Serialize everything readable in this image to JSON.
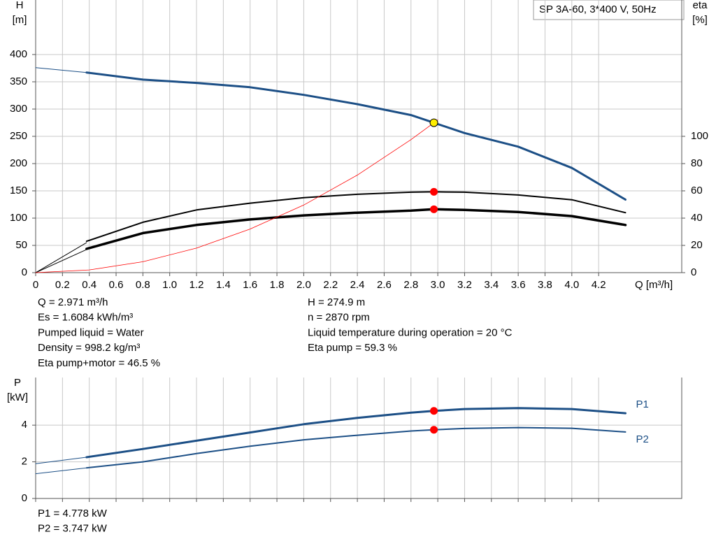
{
  "chart_data": [
    {
      "type": "line",
      "title": "SP 3A-60, 3*400 V, 50Hz",
      "ylabel": "H",
      "yunit": "[m]",
      "y2label": "eta",
      "y2unit": "[%]",
      "xlabel": "Q [m³/h]",
      "xlim": [
        0,
        4.82
      ],
      "xticks": [
        0,
        0.2,
        0.4,
        0.6,
        0.8,
        {
          "value": 1,
          "label": "1.0"
        },
        1.2,
        1.4,
        1.6,
        1.8,
        {
          "value": 2,
          "label": "2.0"
        },
        2.2,
        2.4,
        2.6,
        2.8,
        {
          "value": 3,
          "label": "3.0"
        },
        3.2,
        3.4,
        3.6,
        3.8,
        {
          "value": 4,
          "label": "4.0"
        },
        4.2
      ],
      "ylim": [
        0,
        500
      ],
      "yticks": [
        0,
        50,
        100,
        150,
        200,
        250,
        300,
        350,
        400
      ],
      "y2lim": [
        0,
        200
      ],
      "y2ticks": [
        0,
        20,
        40,
        60,
        80,
        100
      ],
      "grid": true,
      "series": [
        {
          "color": "#1c4f86",
          "width": 1,
          "x": [
            0,
            0.38
          ],
          "values": [
            376,
            367
          ]
        },
        {
          "color": "#1c4f86",
          "width": 3,
          "x": [
            0.38,
            0.8,
            1.2,
            1.6,
            2.0,
            2.4,
            2.8,
            2.971,
            3.2,
            3.6,
            4.0,
            4.4
          ],
          "values": [
            367,
            354,
            348,
            340,
            326,
            309,
            289,
            274.9,
            256,
            231,
            192,
            134
          ]
        },
        {
          "color": "#000000",
          "width": 1,
          "axis": "y2",
          "x": [
            0,
            0.38
          ],
          "values": [
            0,
            22
          ]
        },
        {
          "color": "#000000",
          "width": 2,
          "axis": "y2",
          "x": [
            0.38,
            0.8,
            1.2,
            1.6,
            2.0,
            2.4,
            2.8,
            2.971,
            3.2,
            3.6,
            4.0,
            4.4
          ],
          "values": [
            23,
            37,
            46,
            51,
            55,
            57.5,
            59,
            59.3,
            59,
            57,
            53.5,
            44
          ]
        },
        {
          "color": "#000000",
          "width": 1,
          "axis": "y2",
          "x": [
            0,
            0.38
          ],
          "values": [
            0,
            17
          ]
        },
        {
          "color": "#000000",
          "width": 3.5,
          "axis": "y2",
          "x": [
            0.38,
            0.8,
            1.2,
            1.6,
            2.0,
            2.4,
            2.8,
            2.971,
            3.2,
            3.6,
            4.0,
            4.4
          ],
          "values": [
            17.5,
            29,
            35,
            39,
            42,
            44,
            45.5,
            46.5,
            46,
            44.5,
            41.5,
            35
          ]
        },
        {
          "color": "#ff0000",
          "width": 0.8,
          "x": [
            0,
            0.4,
            0.8,
            1.2,
            1.6,
            2.0,
            2.4,
            2.8,
            3.0
          ],
          "values": [
            0,
            5,
            20,
            45,
            80,
            124,
            179,
            244,
            280
          ]
        }
      ],
      "points": [
        {
          "x": 2.971,
          "value": 274.9,
          "color": "#ffee00"
        },
        {
          "x": 2.971,
          "value": 59.3,
          "color": "#ff0000",
          "axis": "y2"
        },
        {
          "x": 2.971,
          "value": 46.5,
          "color": "#ff0000",
          "axis": "y2"
        }
      ]
    },
    {
      "type": "line",
      "ylabel": "P",
      "yunit": "[kW]",
      "xlim": [
        0,
        4.82
      ],
      "ylim": [
        0,
        6.6
      ],
      "yticks": [
        0,
        2,
        4
      ],
      "grid": true,
      "series": [
        {
          "color": "#1c4f86",
          "width": 1,
          "x": [
            0,
            0.38
          ],
          "values": [
            1.9,
            2.25
          ]
        },
        {
          "name": "P1",
          "color": "#1c4f86",
          "width": 3,
          "x": [
            0.38,
            0.8,
            1.2,
            1.6,
            2.0,
            2.4,
            2.8,
            2.971,
            3.2,
            3.6,
            4.0,
            4.4
          ],
          "values": [
            2.25,
            2.7,
            3.15,
            3.6,
            4.05,
            4.4,
            4.68,
            4.778,
            4.88,
            4.93,
            4.88,
            4.65
          ]
        },
        {
          "color": "#1c4f86",
          "width": 1,
          "x": [
            0,
            0.38
          ],
          "values": [
            1.35,
            1.67
          ]
        },
        {
          "name": "P2",
          "color": "#1c4f86",
          "width": 2,
          "x": [
            0.38,
            0.8,
            1.2,
            1.6,
            2.0,
            2.4,
            2.8,
            2.971,
            3.2,
            3.6,
            4.0,
            4.4
          ],
          "values": [
            1.67,
            2.0,
            2.45,
            2.85,
            3.2,
            3.45,
            3.68,
            3.747,
            3.82,
            3.87,
            3.83,
            3.63
          ]
        }
      ],
      "points": [
        {
          "x": 2.971,
          "value": 4.778,
          "color": "#ff0000"
        },
        {
          "x": 2.971,
          "value": 3.747,
          "color": "#ff0000"
        }
      ]
    }
  ],
  "info": {
    "left": [
      "Q = 2.971 m³/h",
      "Es = 1.6084 kWh/m³",
      "Pumped liquid = Water",
      "Density = 998.2 kg/m³",
      "Eta pump+motor = 46.5 %"
    ],
    "right": [
      "H = 274.9 m",
      "n = 2870 rpm",
      "Liquid temperature during operation = 20 °C",
      "Eta pump = 59.3 %"
    ],
    "bottom": [
      "P1 = 4.778 kW",
      "P2 = 3.747 kW"
    ]
  }
}
